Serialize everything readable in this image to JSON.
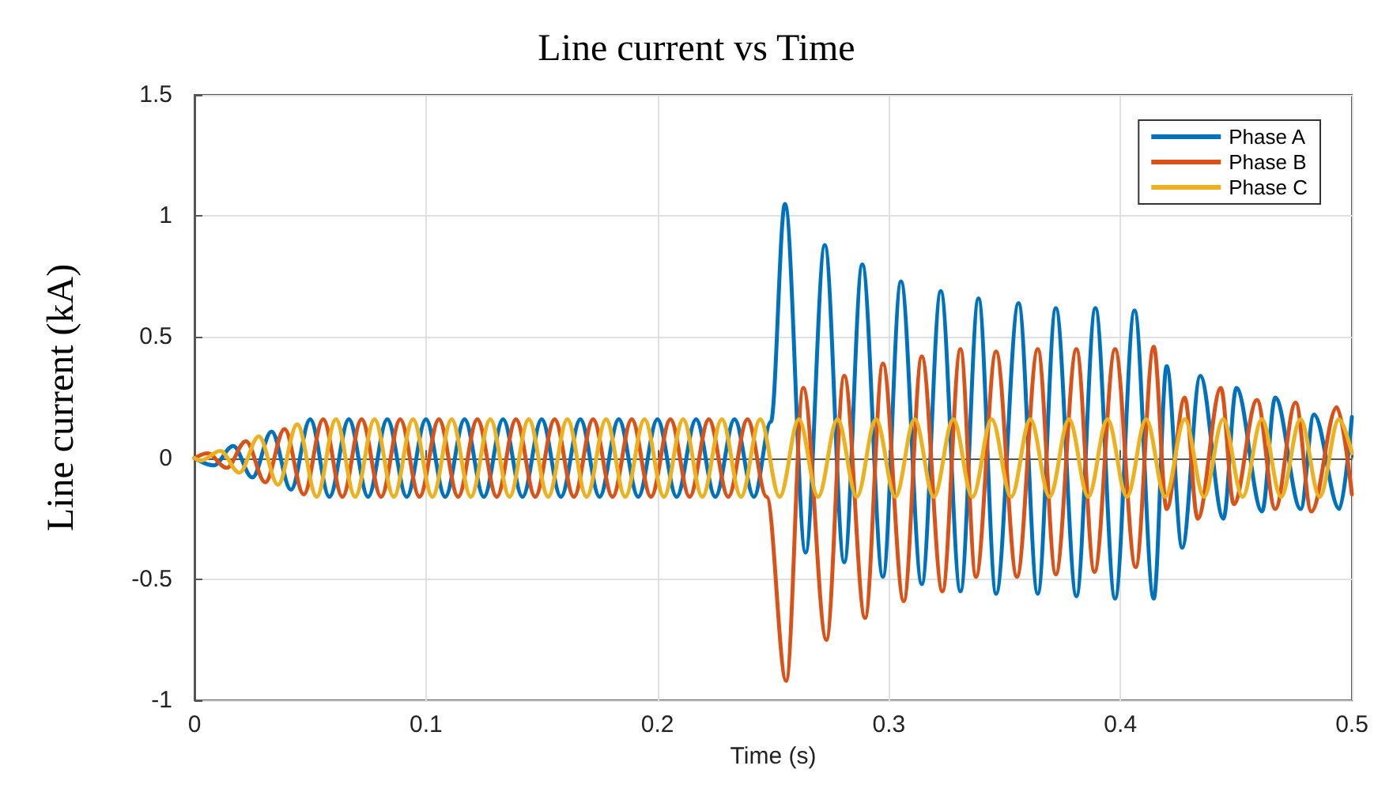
{
  "chart_data": {
    "type": "line",
    "title": "Line current vs Time",
    "xlabel": "Time (s)",
    "ylabel": "Line current (kA)",
    "xlim": [
      0,
      0.5
    ],
    "xticks": [
      0,
      0.1,
      0.2,
      0.3,
      0.4,
      0.5
    ],
    "ylim": [
      -1,
      1.5
    ],
    "yticks": [
      -1,
      -0.5,
      0,
      0.5,
      1,
      1.5
    ],
    "grid": true,
    "legend": "top right",
    "marker": "none",
    "line_style": "solid",
    "series": [
      {
        "name": "Phase A",
        "color": "#0072bd",
        "x": [
          0,
          0.0083,
          0.0167,
          0.025,
          0.0333,
          0.0417,
          0.05,
          0.0583,
          0.0667,
          0.075,
          0.0833,
          0.0917,
          0.1,
          0.1083,
          0.1167,
          0.125,
          0.1333,
          0.1417,
          0.15,
          0.1583,
          0.1667,
          0.175,
          0.1833,
          0.1917,
          0.2,
          0.2083,
          0.2167,
          0.225,
          0.2333,
          0.2417,
          0.249,
          0.2551,
          0.264,
          0.2723,
          0.2807,
          0.2885,
          0.2974,
          0.3052,
          0.3142,
          0.3224,
          0.3309,
          0.3387,
          0.3463,
          0.356,
          0.3643,
          0.3721,
          0.381,
          0.3892,
          0.3977,
          0.4061,
          0.4144,
          0.42,
          0.4267,
          0.4345,
          0.4445,
          0.4501,
          0.4612,
          0.4669,
          0.4779,
          0.4836,
          0.4946,
          0.5
        ],
        "values": [
          0,
          -0.03,
          0.05,
          -0.08,
          0.11,
          -0.13,
          0.16,
          -0.16,
          0.16,
          -0.16,
          0.16,
          -0.16,
          0.16,
          -0.16,
          0.16,
          -0.16,
          0.16,
          -0.16,
          0.16,
          -0.16,
          0.16,
          -0.16,
          0.16,
          -0.16,
          0.16,
          -0.16,
          0.16,
          -0.16,
          0.16,
          -0.16,
          0.15,
          1.05,
          -0.39,
          0.88,
          -0.43,
          0.8,
          -0.49,
          0.73,
          -0.52,
          0.69,
          -0.55,
          0.66,
          -0.56,
          0.64,
          -0.56,
          0.62,
          -0.57,
          0.62,
          -0.58,
          0.61,
          -0.58,
          0.38,
          -0.37,
          0.34,
          -0.25,
          0.29,
          -0.22,
          0.25,
          -0.21,
          0.18,
          -0.21,
          0.17
        ]
      },
      {
        "name": "Phase B",
        "color": "#d95319",
        "x": [
          0,
          0.0056,
          0.0139,
          0.0222,
          0.0306,
          0.0389,
          0.0472,
          0.0556,
          0.0639,
          0.0722,
          0.0806,
          0.0889,
          0.0972,
          0.1056,
          0.1139,
          0.1222,
          0.1306,
          0.1389,
          0.1472,
          0.1556,
          0.1639,
          0.1722,
          0.1806,
          0.1889,
          0.1972,
          0.2056,
          0.2139,
          0.2222,
          0.2306,
          0.2389,
          0.2472,
          0.2556,
          0.263,
          0.273,
          0.2807,
          0.2897,
          0.2974,
          0.3064,
          0.3142,
          0.3231,
          0.3309,
          0.3376,
          0.3463,
          0.3553,
          0.3643,
          0.3721,
          0.381,
          0.3888,
          0.3977,
          0.4066,
          0.4144,
          0.42,
          0.4278,
          0.4334,
          0.4434,
          0.449,
          0.459,
          0.4669,
          0.4757,
          0.4825,
          0.4935,
          0.5
        ],
        "values": [
          0,
          0.02,
          -0.04,
          0.07,
          -0.1,
          0.12,
          -0.15,
          0.16,
          -0.16,
          0.16,
          -0.16,
          0.16,
          -0.16,
          0.16,
          -0.16,
          0.16,
          -0.16,
          0.16,
          -0.16,
          0.16,
          -0.16,
          0.16,
          -0.16,
          0.16,
          -0.16,
          0.16,
          -0.16,
          0.16,
          -0.16,
          0.16,
          -0.16,
          -0.92,
          0.29,
          -0.75,
          0.34,
          -0.66,
          0.39,
          -0.59,
          0.42,
          -0.55,
          0.45,
          -0.49,
          0.44,
          -0.49,
          0.45,
          -0.48,
          0.45,
          -0.47,
          0.45,
          -0.45,
          0.46,
          -0.21,
          0.25,
          -0.25,
          0.29,
          -0.19,
          0.24,
          -0.21,
          0.23,
          -0.22,
          0.21,
          -0.15
        ]
      },
      {
        "name": "Phase C",
        "color": "#edb120",
        "x": [
          0,
          0.0028,
          0.0111,
          0.0194,
          0.0278,
          0.0361,
          0.0444,
          0.0528,
          0.0611,
          0.0694,
          0.0778,
          0.0861,
          0.0944,
          0.1028,
          0.1111,
          0.1194,
          0.1278,
          0.1361,
          0.1444,
          0.1528,
          0.1611,
          0.1694,
          0.1778,
          0.1861,
          0.1944,
          0.2028,
          0.2111,
          0.2194,
          0.2278,
          0.2361,
          0.2444,
          0.2528,
          0.2611,
          0.2694,
          0.2778,
          0.2861,
          0.2944,
          0.3028,
          0.3111,
          0.3194,
          0.3278,
          0.3361,
          0.3444,
          0.3528,
          0.3611,
          0.3694,
          0.3778,
          0.3861,
          0.3944,
          0.4028,
          0.4111,
          0.4194,
          0.4278,
          0.4361,
          0.4444,
          0.4528,
          0.4611,
          0.4694,
          0.4778,
          0.4861,
          0.4944,
          0.5
        ],
        "values": [
          0,
          -0.01,
          0.03,
          -0.06,
          0.09,
          -0.11,
          0.14,
          -0.16,
          0.16,
          -0.16,
          0.16,
          -0.16,
          0.16,
          -0.16,
          0.16,
          -0.16,
          0.16,
          -0.16,
          0.16,
          -0.16,
          0.16,
          -0.16,
          0.16,
          -0.16,
          0.16,
          -0.16,
          0.16,
          -0.16,
          0.16,
          -0.16,
          0.16,
          -0.16,
          0.16,
          -0.16,
          0.16,
          -0.16,
          0.16,
          -0.16,
          0.16,
          -0.16,
          0.16,
          -0.16,
          0.16,
          -0.16,
          0.16,
          -0.16,
          0.16,
          -0.16,
          0.16,
          -0.16,
          0.16,
          -0.16,
          0.16,
          -0.16,
          0.16,
          -0.16,
          0.16,
          -0.16,
          0.16,
          -0.16,
          0.16,
          0.02
        ]
      }
    ]
  }
}
